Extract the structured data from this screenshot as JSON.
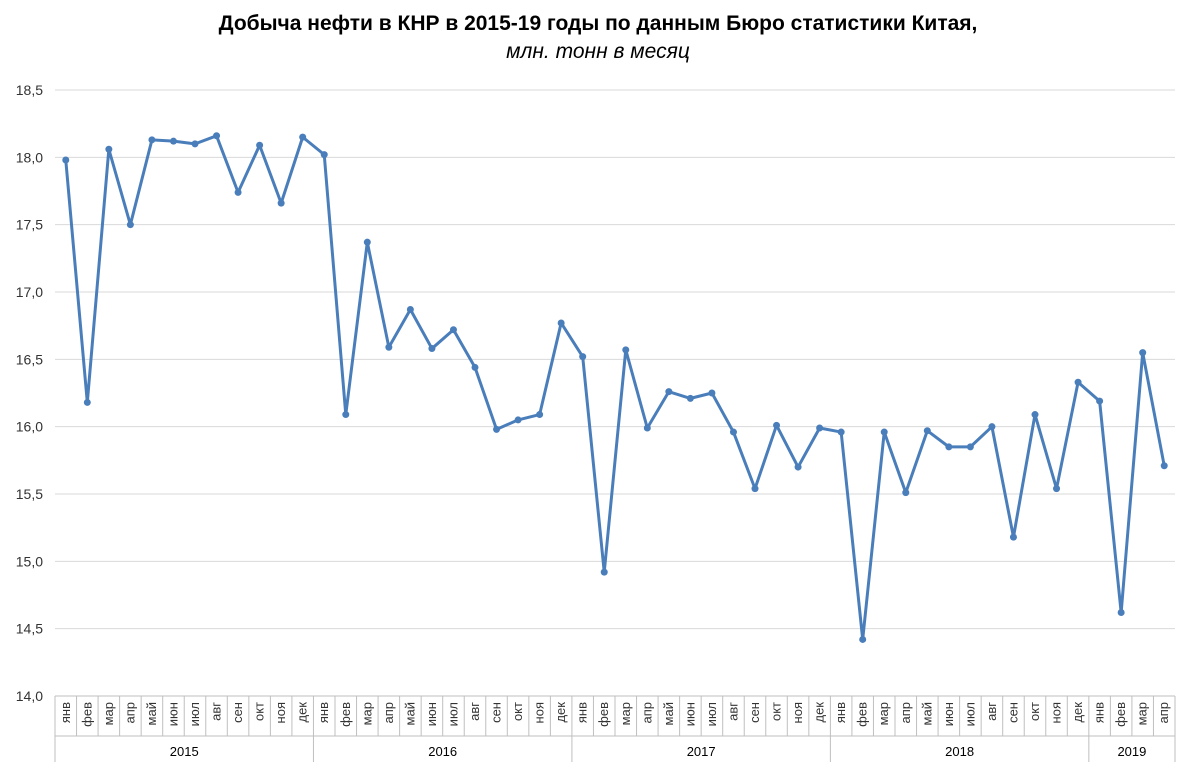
{
  "chart_data": {
    "type": "line",
    "title": "Добыча нефти в КНР в 2015-19 годы по данным Бюро статистики Китая,",
    "subtitle": "млн. тонн в месяц",
    "xlabel": "",
    "ylabel": "",
    "ylim": [
      14.0,
      18.5
    ],
    "yticks": [
      "14,0",
      "14,5",
      "15,0",
      "15,5",
      "16,0",
      "16,5",
      "17,0",
      "17,5",
      "18,0",
      "18,5"
    ],
    "ytick_values": [
      14.0,
      14.5,
      15.0,
      15.5,
      16.0,
      16.5,
      17.0,
      17.5,
      18.0,
      18.5
    ],
    "grid": true,
    "line_color": "#4a7ebb",
    "groups": [
      {
        "label": "2015",
        "months": [
          "янв",
          "фев",
          "мар",
          "апр",
          "май",
          "июн",
          "июл",
          "авг",
          "сен",
          "окт",
          "ноя",
          "дек"
        ]
      },
      {
        "label": "2016",
        "months": [
          "янв",
          "фев",
          "мар",
          "апр",
          "май",
          "июн",
          "июл",
          "авг",
          "сен",
          "окт",
          "ноя",
          "дек"
        ]
      },
      {
        "label": "2017",
        "months": [
          "янв",
          "фев",
          "мар",
          "апр",
          "май",
          "июн",
          "июл",
          "авг",
          "сен",
          "окт",
          "ноя",
          "дек"
        ]
      },
      {
        "label": "2018",
        "months": [
          "янв",
          "фев",
          "мар",
          "апр",
          "май",
          "июн",
          "июл",
          "авг",
          "сен",
          "окт",
          "ноя",
          "дек"
        ]
      },
      {
        "label": "2019",
        "months": [
          "янв",
          "фев",
          "мар",
          "апр"
        ]
      }
    ],
    "values": [
      17.98,
      16.18,
      18.06,
      17.5,
      18.13,
      18.12,
      18.1,
      18.16,
      17.74,
      18.09,
      17.66,
      18.15,
      18.02,
      16.09,
      17.37,
      16.59,
      16.87,
      16.58,
      16.72,
      16.44,
      15.98,
      16.05,
      16.09,
      16.77,
      16.52,
      14.92,
      16.57,
      15.99,
      16.26,
      16.21,
      16.25,
      15.96,
      15.54,
      16.01,
      15.7,
      15.99,
      15.96,
      14.42,
      15.96,
      15.51,
      15.97,
      15.85,
      15.85,
      16.0,
      15.18,
      16.09,
      15.54,
      16.33,
      16.19,
      14.62,
      16.55,
      15.71
    ]
  }
}
